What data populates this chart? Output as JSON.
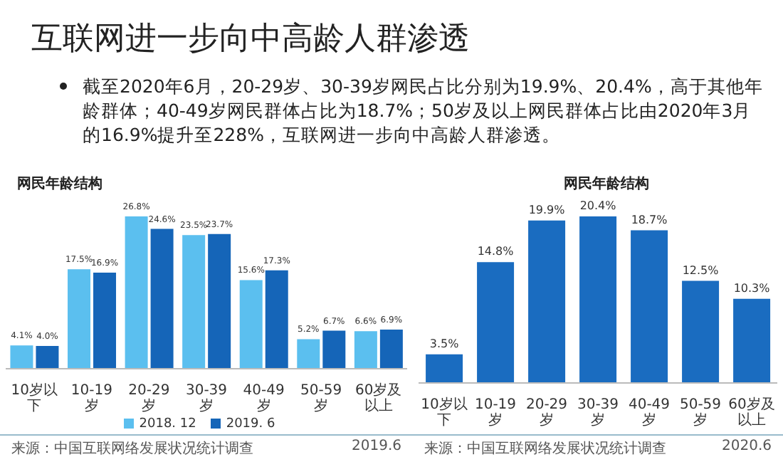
{
  "chart_data": [
    {
      "type": "other",
      "title": "互联网进一步向中高龄人群渗透",
      "annotations": [
        "截至2020年6月，20-29岁、30-39岁网民占比分别为19.9%、20.4%，高于其他年龄群体；40-49岁网民群体占比为18.7%；50岁及以上网民群体占比由2020年3月的16.9%提升至228%，互联网进一步向中高龄人群渗透。"
      ]
    },
    {
      "type": "bar",
      "title": "网民年龄结构",
      "categories": [
        "10岁以下",
        "10-19岁",
        "20-29岁",
        "30-39岁",
        "40-49岁",
        "50-59岁",
        "60岁及以上"
      ],
      "series": [
        {
          "name": "2018. 12",
          "color": "#5bbfef",
          "values": [
            4.1,
            17.5,
            26.8,
            23.5,
            15.6,
            5.2,
            6.6
          ],
          "value_labels": [
            "4.1%",
            "17.5%",
            "26.8%",
            "23.5%",
            "15.6%",
            "5.2%",
            "6.6%"
          ]
        },
        {
          "name": "2019. 6",
          "color": "#1565b8",
          "values": [
            4.0,
            16.9,
            24.6,
            23.7,
            17.3,
            6.7,
            6.9
          ],
          "value_labels": [
            "4.0%",
            "16.9%",
            "24.6%",
            "23.7%",
            "17.3%",
            "6.7%",
            "6.9%"
          ]
        }
      ],
      "legend": "bottom",
      "annotations": [
        "来源：中国互联网络发展状况统计调查",
        "2019.6"
      ]
    },
    {
      "type": "bar",
      "title": "网民年龄结构",
      "categories": [
        "10岁以下",
        "10-19岁",
        "20-29岁",
        "30-39岁",
        "40-49岁",
        "50-59岁",
        "60岁及以上"
      ],
      "values": [
        3.5,
        14.8,
        19.9,
        20.4,
        18.7,
        12.5,
        10.3
      ],
      "value_labels": [
        "3.5%",
        "14.8%",
        "19.9%",
        "20.4%",
        "18.7%",
        "12.5%",
        "10.3%"
      ],
      "color": "#1a6cc0",
      "annotations": [
        "来源：中国互联网络发展状况统计调查",
        "2020.6"
      ]
    }
  ]
}
